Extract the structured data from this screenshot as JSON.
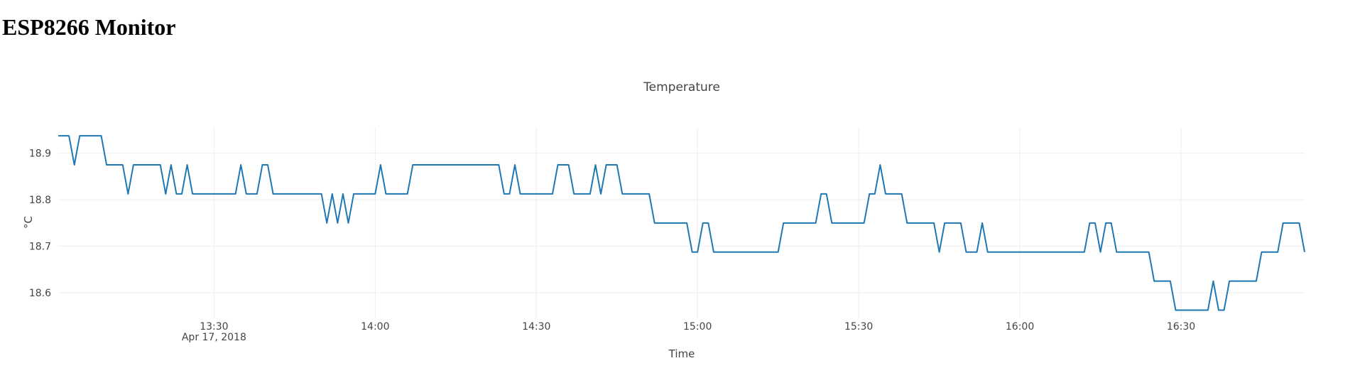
{
  "header": {
    "title": "ESP8266 Monitor"
  },
  "chart_data": {
    "type": "line",
    "title": "Temperature",
    "x_label": "Time",
    "y_label": "°C",
    "x_date_label": "Apr 17, 2018",
    "grid": true,
    "xlim": [
      "2018-04-17 13:01",
      "2018-04-17 16:53"
    ],
    "ylim": [
      18.545,
      18.956
    ],
    "xticks": [
      {
        "value": "2018-04-17 13:30",
        "label": "13:30"
      },
      {
        "value": "2018-04-17 14:00",
        "label": "14:00"
      },
      {
        "value": "2018-04-17 14:30",
        "label": "14:30"
      },
      {
        "value": "2018-04-17 15:00",
        "label": "15:00"
      },
      {
        "value": "2018-04-17 15:30",
        "label": "15:30"
      },
      {
        "value": "2018-04-17 16:00",
        "label": "16:00"
      },
      {
        "value": "2018-04-17 16:30",
        "label": "16:30"
      }
    ],
    "yticks": [
      18.6,
      18.7,
      18.8,
      18.9
    ],
    "series": [
      {
        "color": "#1f77b4",
        "x": [
          "2018-04-17 13:01",
          "2018-04-17 13:03",
          "2018-04-17 13:04",
          "2018-04-17 13:05",
          "2018-04-17 13:09",
          "2018-04-17 13:10",
          "2018-04-17 13:13",
          "2018-04-17 13:14",
          "2018-04-17 13:15",
          "2018-04-17 13:20",
          "2018-04-17 13:21",
          "2018-04-17 13:22",
          "2018-04-17 13:23",
          "2018-04-17 13:24",
          "2018-04-17 13:25",
          "2018-04-17 13:26",
          "2018-04-17 13:34",
          "2018-04-17 13:35",
          "2018-04-17 13:36",
          "2018-04-17 13:38",
          "2018-04-17 13:39",
          "2018-04-17 13:40",
          "2018-04-17 13:41",
          "2018-04-17 13:50",
          "2018-04-17 13:51",
          "2018-04-17 13:52",
          "2018-04-17 13:53",
          "2018-04-17 13:54",
          "2018-04-17 13:55",
          "2018-04-17 13:56",
          "2018-04-17 14:00",
          "2018-04-17 14:01",
          "2018-04-17 14:02",
          "2018-04-17 14:06",
          "2018-04-17 14:07",
          "2018-04-17 14:23",
          "2018-04-17 14:24",
          "2018-04-17 14:25",
          "2018-04-17 14:26",
          "2018-04-17 14:27",
          "2018-04-17 14:33",
          "2018-04-17 14:34",
          "2018-04-17 14:36",
          "2018-04-17 14:37",
          "2018-04-17 14:40",
          "2018-04-17 14:41",
          "2018-04-17 14:42",
          "2018-04-17 14:43",
          "2018-04-17 14:45",
          "2018-04-17 14:46",
          "2018-04-17 14:51",
          "2018-04-17 14:52",
          "2018-04-17 14:58",
          "2018-04-17 14:59",
          "2018-04-17 15:00",
          "2018-04-17 15:01",
          "2018-04-17 15:02",
          "2018-04-17 15:03",
          "2018-04-17 15:15",
          "2018-04-17 15:16",
          "2018-04-17 15:22",
          "2018-04-17 15:23",
          "2018-04-17 15:24",
          "2018-04-17 15:25",
          "2018-04-17 15:31",
          "2018-04-17 15:32",
          "2018-04-17 15:33",
          "2018-04-17 15:34",
          "2018-04-17 15:35",
          "2018-04-17 15:38",
          "2018-04-17 15:39",
          "2018-04-17 15:44",
          "2018-04-17 15:45",
          "2018-04-17 15:46",
          "2018-04-17 15:49",
          "2018-04-17 15:50",
          "2018-04-17 15:52",
          "2018-04-17 15:53",
          "2018-04-17 15:54",
          "2018-04-17 16:12",
          "2018-04-17 16:13",
          "2018-04-17 16:14",
          "2018-04-17 16:15",
          "2018-04-17 16:16",
          "2018-04-17 16:17",
          "2018-04-17 16:18",
          "2018-04-17 16:24",
          "2018-04-17 16:25",
          "2018-04-17 16:28",
          "2018-04-17 16:29",
          "2018-04-17 16:35",
          "2018-04-17 16:36",
          "2018-04-17 16:37",
          "2018-04-17 16:38",
          "2018-04-17 16:39",
          "2018-04-17 16:44",
          "2018-04-17 16:45",
          "2018-04-17 16:48",
          "2018-04-17 16:49",
          "2018-04-17 16:52",
          "2018-04-17 16:53"
        ],
        "values": [
          18.9375,
          18.9375,
          18.875,
          18.9375,
          18.9375,
          18.875,
          18.875,
          18.8125,
          18.875,
          18.875,
          18.8125,
          18.875,
          18.8125,
          18.8125,
          18.875,
          18.8125,
          18.8125,
          18.875,
          18.8125,
          18.8125,
          18.875,
          18.875,
          18.8125,
          18.8125,
          18.75,
          18.8125,
          18.75,
          18.8125,
          18.75,
          18.8125,
          18.8125,
          18.875,
          18.8125,
          18.8125,
          18.875,
          18.875,
          18.8125,
          18.8125,
          18.875,
          18.8125,
          18.8125,
          18.875,
          18.875,
          18.8125,
          18.8125,
          18.875,
          18.8125,
          18.875,
          18.875,
          18.8125,
          18.8125,
          18.75,
          18.75,
          18.6875,
          18.6875,
          18.75,
          18.75,
          18.6875,
          18.6875,
          18.75,
          18.75,
          18.8125,
          18.8125,
          18.75,
          18.75,
          18.8125,
          18.8125,
          18.875,
          18.8125,
          18.8125,
          18.75,
          18.75,
          18.6875,
          18.75,
          18.75,
          18.6875,
          18.6875,
          18.75,
          18.6875,
          18.6875,
          18.75,
          18.75,
          18.6875,
          18.75,
          18.75,
          18.6875,
          18.6875,
          18.625,
          18.625,
          18.5625,
          18.5625,
          18.625,
          18.5625,
          18.5625,
          18.625,
          18.625,
          18.6875,
          18.6875,
          18.75,
          18.75,
          18.6875
        ]
      }
    ]
  }
}
